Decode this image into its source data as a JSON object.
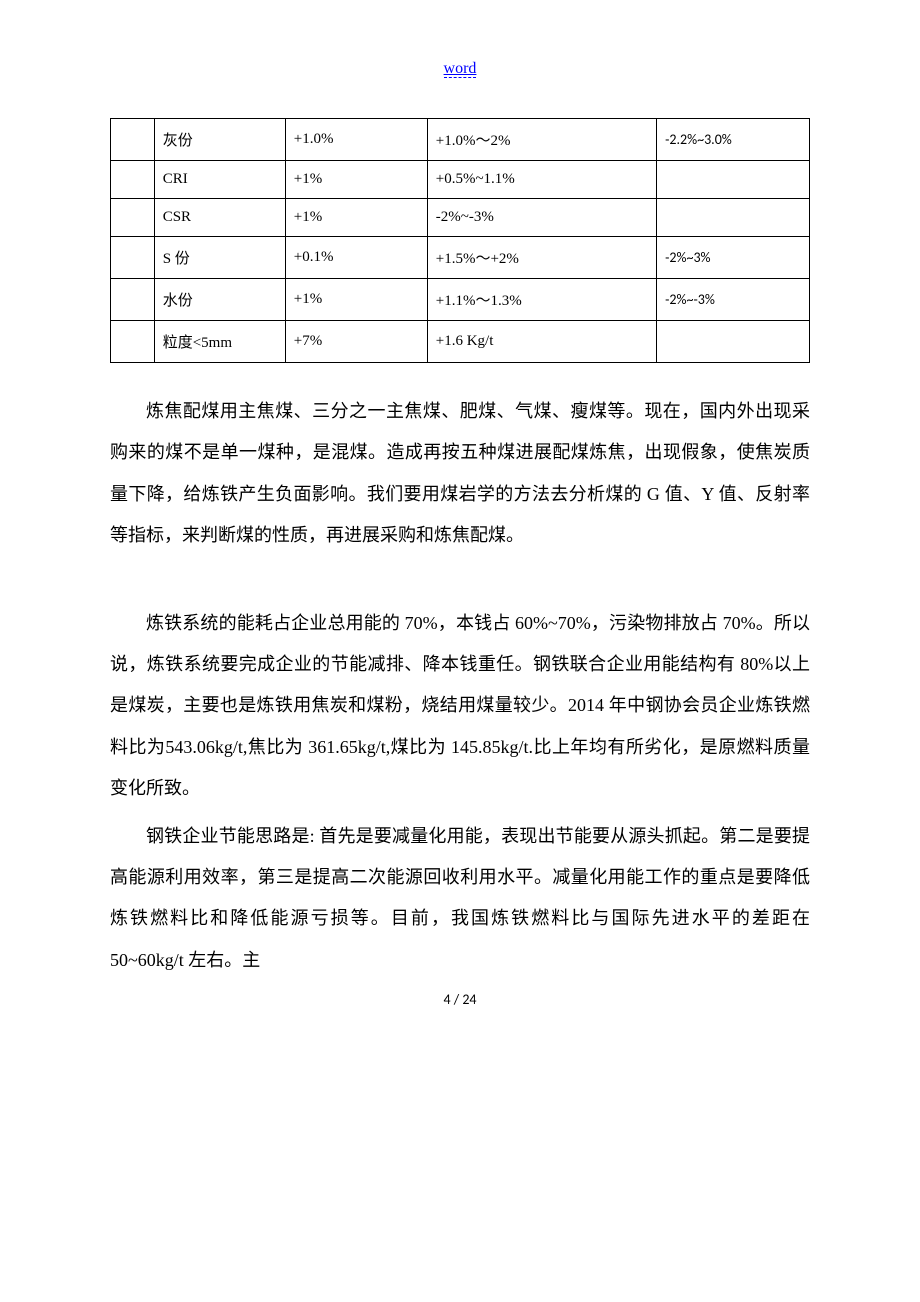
{
  "header": {
    "link_text": "word"
  },
  "table": {
    "rows": [
      {
        "c0": "",
        "c1": "灰份",
        "c2": "+1.0%",
        "c3": "+1.0%～2%",
        "c4": "-2.2%~3.0%"
      },
      {
        "c0": "",
        "c1": "CRI",
        "c2": "+1%",
        "c3": "+0.5%~1.1%",
        "c4": ""
      },
      {
        "c0": "",
        "c1": "CSR",
        "c2": "+1%",
        "c3": "-2%~-3%",
        "c4": ""
      },
      {
        "c0": "",
        "c1": "S 份",
        "c2": "+0.1%",
        "c3": "+1.5%～+2%",
        "c4": "-2%~3%"
      },
      {
        "c0": "",
        "c1": "水份",
        "c2": "+1%",
        "c3": "+1.1%～1.3%",
        "c4": "-2%~-3%"
      },
      {
        "c0": "",
        "c1": "粒度<5mm",
        "c2": "+7%",
        "c3": "+1.6 Kg/t",
        "c4": ""
      }
    ]
  },
  "paragraphs": {
    "p1": "炼焦配煤用主焦煤、三分之一主焦煤、肥煤、气煤、瘦煤等。现在，国内外出现采购来的煤不是单一煤种，是混煤。造成再按五种煤进展配煤炼焦，出现假象，使焦炭质量下降，给炼铁产生负面影响。我们要用煤岩学的方法去分析煤的 G 值、Y 值、反射率等指标，来判断煤的性质，再进展采购和炼焦配煤。",
    "p2": "炼铁系统的能耗占企业总用能的 70%，本钱占 60%~70%，污染物排放占 70%。所以说，炼铁系统要完成企业的节能减排、降本钱重任。钢铁联合企业用能结构有 80%以上是煤炭，主要也是炼铁用焦炭和煤粉，烧结用煤量较少。2014 年中钢协会员企业炼铁燃料比为543.06kg/t,焦比为 361.65kg/t,煤比为 145.85kg/t.比上年均有所劣化，是原燃料质量变化所致。",
    "p3": "钢铁企业节能思路是: 首先是要减量化用能，表现出节能要从源头抓起。第二是要提高能源利用效率，第三是提高二次能源回收利用水平。减量化用能工作的重点是要降低炼铁燃料比和降低能源亏损等。目前，我国炼铁燃料比与国际先进水平的差距在 50~60kg/t 左右。主"
  },
  "footer": {
    "page": "4 / 24"
  }
}
